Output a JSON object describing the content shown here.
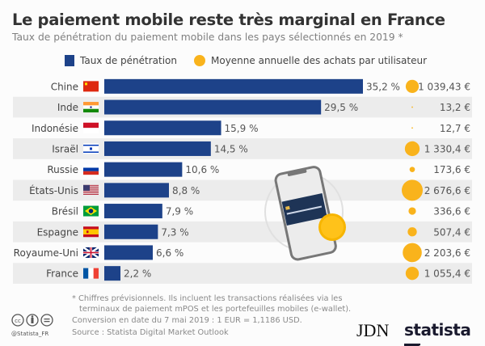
{
  "header": {
    "title": "Le paiement mobile reste très marginal en France",
    "subtitle": "Taux de pénétration du paiement mobile dans les pays sélectionnés en 2019 *"
  },
  "legend": {
    "bar_label": "Taux de pénétration",
    "bubble_label": "Moyenne annuelle des achats par utilisateur"
  },
  "colors": {
    "bar": "#1d4289",
    "bubble": "#f9b31c",
    "row_alt": "#ececec"
  },
  "chart_data": {
    "type": "bar",
    "orientation": "horizontal",
    "categories": [
      "Chine",
      "Inde",
      "Indonésie",
      "Israël",
      "Russie",
      "États-Unis",
      "Brésil",
      "Espagne",
      "Royaume-Uni",
      "France"
    ],
    "flag_icons": [
      "flag-cn-icon",
      "flag-in-icon",
      "flag-id-icon",
      "flag-il-icon",
      "flag-ru-icon",
      "flag-us-icon",
      "flag-br-icon",
      "flag-es-icon",
      "flag-gb-icon",
      "flag-fr-icon"
    ],
    "series": [
      {
        "name": "Taux de pénétration",
        "unit": "%",
        "values": [
          35.2,
          29.5,
          15.9,
          14.5,
          10.6,
          8.8,
          7.9,
          7.3,
          6.6,
          2.2
        ],
        "labels": [
          "35,2 %",
          "29,5 %",
          "15,9 %",
          "14,5 %",
          "10,6 %",
          "8,8 %",
          "7,9 %",
          "7,3 %",
          "6,6 %",
          "2,2 %"
        ]
      },
      {
        "name": "Moyenne annuelle des achats par utilisateur",
        "unit": "€",
        "type": "bubble",
        "values": [
          1039.43,
          13.2,
          12.7,
          1330.4,
          173.6,
          2676.6,
          336.6,
          507.4,
          2203.6,
          1055.4
        ],
        "labels": [
          "1 039,43 €",
          "13,2 €",
          "12,7 €",
          "1 330,4 €",
          "173,6 €",
          "2 676,6 €",
          "336,6 €",
          "507,4 €",
          "2 203,6 €",
          "1 055,4 €"
        ]
      }
    ],
    "grid": false
  },
  "footer": {
    "note1": "* Chiffres prévisionnels. Ils incluent les transactions réalisées via les",
    "note2": "terminaux de paiement mPOS et les portefeuilles mobiles (e-wallet).",
    "conversion": "Conversion en date du 7 mai 2019 : 1 EUR = 1,1186 USD.",
    "source": "Source : Statista Digital Market Outlook",
    "handle": "@Statista_FR",
    "logo_jdn": "JDN",
    "logo_statista": "statista"
  }
}
